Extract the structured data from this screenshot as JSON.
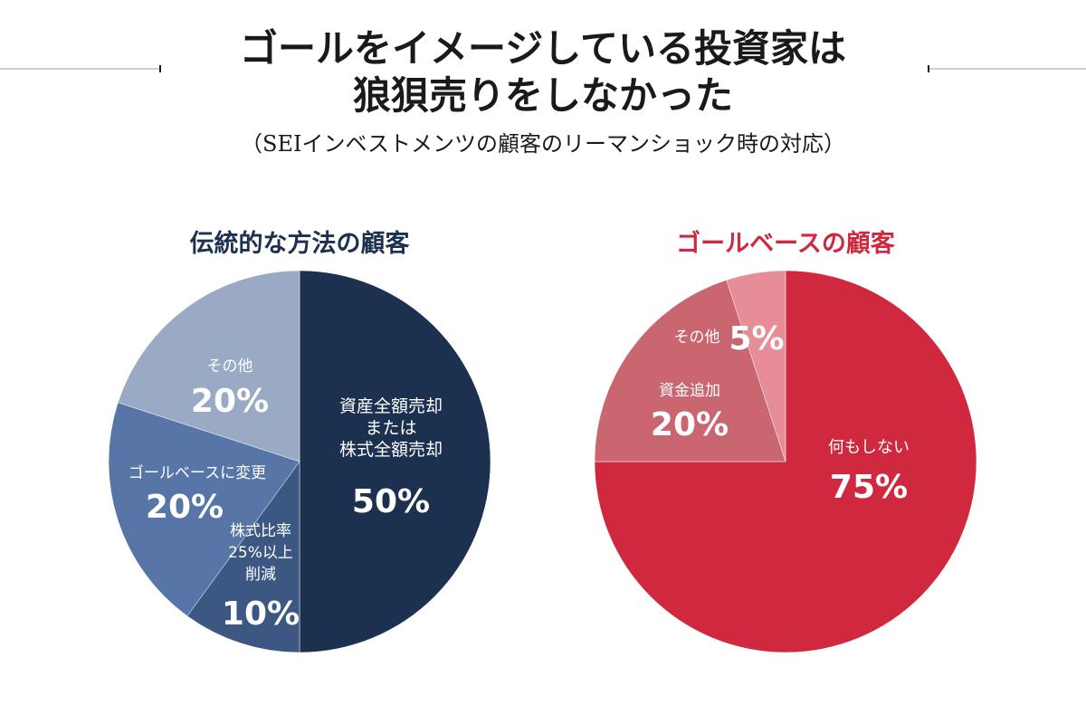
{
  "header": {
    "title_line1": "ゴールをイメージしている投資家は",
    "title_line2": "狼狽売りをしなかった",
    "subtitle": "（SEIインベストメンツの顧客のリーマンショック時の対応）"
  },
  "colors": {
    "left_title": "#1c3050",
    "right_title": "#d0293f"
  },
  "chart_data": [
    {
      "type": "pie",
      "title": "伝統的な方法の顧客",
      "slices": [
        {
          "label": "資産全額売却\nまたは\n株式全額売却",
          "value": 50,
          "display": "50%",
          "color": "#1c3050"
        },
        {
          "label": "株式比率\n25%以上\n削減",
          "value": 10,
          "display": "10%",
          "color": "#3b5782"
        },
        {
          "label": "ゴールベースに変更",
          "value": 20,
          "display": "20%",
          "color": "#5775a6"
        },
        {
          "label": "その他",
          "value": 20,
          "display": "20%",
          "color": "#9aa9c4"
        }
      ]
    },
    {
      "type": "pie",
      "title": "ゴールベースの顧客",
      "slices": [
        {
          "label": "何もしない",
          "value": 75,
          "display": "75%",
          "color": "#d0293f"
        },
        {
          "label": "資金追加",
          "value": 20,
          "display": "20%",
          "color": "#c96670"
        },
        {
          "label": "その他",
          "value": 5,
          "display": "5%",
          "color": "#e78d97"
        }
      ]
    }
  ]
}
